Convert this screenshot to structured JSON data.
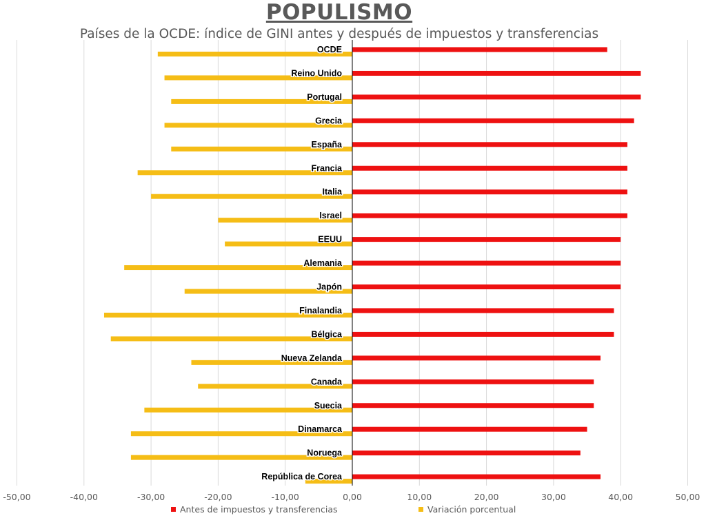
{
  "header": {
    "title": "POPULISMO",
    "subtitle": "Países de la OCDE: índice de GINI antes y después de impuestos y transferencias"
  },
  "colors": {
    "before": "#ee1111",
    "variation": "#f5bd16",
    "grid": "#d9d9d9",
    "axis": "#000000",
    "tick_text": "#595959"
  },
  "legend": {
    "before_label": "Antes de impuestos y transferencias",
    "variation_label": "Variación porcentual"
  },
  "chart_data": {
    "type": "bar",
    "orientation": "horizontal",
    "title": "Países de la OCDE: índice de GINI antes y después de impuestos y transferencias",
    "xlim": [
      -50,
      50
    ],
    "x_ticks": [
      -50,
      -40,
      -30,
      -20,
      -10,
      0,
      10,
      20,
      30,
      40,
      50
    ],
    "x_tick_labels": [
      "-50,00",
      "-40,00",
      "-30,00",
      "-20,00",
      "-10,00",
      "0,00",
      "10,00",
      "20,00",
      "30,00",
      "40,00",
      "50,00"
    ],
    "grid": true,
    "legend_position": "bottom",
    "categories": [
      "OCDE",
      "Reino Unido",
      "Portugal",
      "Grecia",
      "España",
      "Francia",
      "Italia",
      "Israel",
      "EEUU",
      "Alemania",
      "Japón",
      "Finalandia",
      "Bélgica",
      "Nueva Zelanda",
      "Canada",
      "Suecia",
      "Dinamarca",
      "Noruega",
      "República de Corea"
    ],
    "series": [
      {
        "name": "Antes de impuestos y transferencias",
        "values": [
          38,
          43,
          43,
          42,
          41,
          41,
          41,
          41,
          40,
          40,
          40,
          39,
          39,
          37,
          36,
          36,
          35,
          34,
          37
        ]
      },
      {
        "name": "Variación porcentual",
        "values": [
          -29,
          -28,
          -27,
          -28,
          -27,
          -32,
          -30,
          -20,
          -19,
          -34,
          -25,
          -37,
          -36,
          -24,
          -23,
          -31,
          -33,
          -33,
          -7
        ]
      }
    ]
  }
}
